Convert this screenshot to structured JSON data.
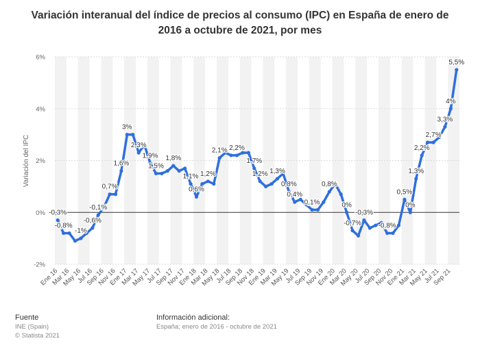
{
  "title": "Variación interanual del índice de precios al consumo (IPC) en España de enero de 2016 a octubre de 2021, por mes",
  "footer": {
    "source_heading": "Fuente",
    "source_lines": [
      "INE (Spain)",
      "© Statista 2021"
    ],
    "info_heading": "Información adicional:",
    "info_text": "España; enero de 2016 - octubre de 2021"
  },
  "colors": {
    "line": "#2f6fdc",
    "band": "#f2f2f2",
    "grid": "#d9d9d9",
    "zero": "#333333"
  },
  "chart_data": {
    "type": "line",
    "title": "Variación interanual del índice de precios al consumo (IPC) en España de enero de 2016 a octubre de 2021, por mes",
    "ylabel": "Variación del IPC",
    "xlabel": "",
    "ylim": [
      -2,
      6
    ],
    "y_ticks": [
      "-2%",
      "0%",
      "2%",
      "4%",
      "6%"
    ],
    "y_tick_values": [
      -2,
      0,
      2,
      4,
      6
    ],
    "grid": true,
    "x_tick_labels": [
      "Ene 16",
      "Mar 16",
      "May 16",
      "Jul 16",
      "Sep 16",
      "Nov 16",
      "Ene 17",
      "Mar 17",
      "May 17",
      "Jul 17",
      "Sep 17",
      "Nov 17",
      "Ene 18",
      "Mar 18",
      "May 18",
      "Jul 18",
      "Sep 18",
      "Nov 18",
      "Ene 19",
      "Mar 19",
      "May 19",
      "Jul 19",
      "Sep 19",
      "Nov 19",
      "Ene 20",
      "Mar 20",
      "May 20",
      "Jul 20",
      "Sep 20",
      "Nov 20",
      "Ene 21",
      "Mar 21",
      "May 21",
      "Jul 21",
      "Sep 21"
    ],
    "x": [
      "Ene 16",
      "Feb 16",
      "Mar 16",
      "Abr 16",
      "May 16",
      "Jun 16",
      "Jul 16",
      "Ago 16",
      "Sep 16",
      "Oct 16",
      "Nov 16",
      "Dic 16",
      "Ene 17",
      "Feb 17",
      "Mar 17",
      "Abr 17",
      "May 17",
      "Jun 17",
      "Jul 17",
      "Ago 17",
      "Sep 17",
      "Oct 17",
      "Nov 17",
      "Dic 17",
      "Ene 18",
      "Feb 18",
      "Mar 18",
      "Abr 18",
      "May 18",
      "Jun 18",
      "Jul 18",
      "Ago 18",
      "Sep 18",
      "Oct 18",
      "Nov 18",
      "Dic 18",
      "Ene 19",
      "Feb 19",
      "Mar 19",
      "Abr 19",
      "May 19",
      "Jun 19",
      "Jul 19",
      "Ago 19",
      "Sep 19",
      "Oct 19",
      "Nov 19",
      "Dic 19",
      "Ene 20",
      "Feb 20",
      "Mar 20",
      "Abr 20",
      "May 20",
      "Jun 20",
      "Jul 20",
      "Ago 20",
      "Sep 20",
      "Oct 20",
      "Nov 20",
      "Dic 20",
      "Ene 21",
      "Feb 21",
      "Mar 21",
      "Abr 21",
      "May 21",
      "Jun 21",
      "Jul 21",
      "Ago 21",
      "Sep 21",
      "Oct 21"
    ],
    "values": [
      -0.3,
      -0.8,
      -0.8,
      -1.1,
      -1.0,
      -0.8,
      -0.6,
      -0.1,
      0.2,
      0.7,
      0.7,
      1.6,
      3.0,
      3.0,
      2.3,
      2.6,
      1.9,
      1.5,
      1.5,
      1.6,
      1.8,
      1.6,
      1.7,
      1.1,
      0.6,
      1.1,
      1.2,
      1.1,
      2.1,
      2.3,
      2.2,
      2.2,
      2.3,
      2.3,
      1.7,
      1.2,
      1.0,
      1.1,
      1.3,
      1.5,
      0.8,
      0.4,
      0.5,
      0.3,
      0.1,
      0.1,
      0.4,
      0.8,
      1.1,
      0.7,
      0.0,
      -0.7,
      -0.9,
      -0.3,
      -0.6,
      -0.5,
      -0.4,
      -0.8,
      -0.8,
      -0.5,
      0.5,
      0.0,
      1.3,
      2.2,
      2.7,
      2.7,
      2.9,
      3.3,
      4.0,
      5.5
    ],
    "data_labels": [
      {
        "index": 0,
        "text": "-0,3%"
      },
      {
        "index": 1,
        "text": "-0,8%"
      },
      {
        "index": 4,
        "text": "-1%"
      },
      {
        "index": 6,
        "text": "-0,6%"
      },
      {
        "index": 7,
        "text": "-0,1%"
      },
      {
        "index": 9,
        "text": "0,7%"
      },
      {
        "index": 11,
        "text": "1,6%"
      },
      {
        "index": 12,
        "text": "3%"
      },
      {
        "index": 14,
        "text": "2,3%"
      },
      {
        "index": 16,
        "text": "1,9%"
      },
      {
        "index": 17,
        "text": "1,5%"
      },
      {
        "index": 20,
        "text": "1,8%"
      },
      {
        "index": 23,
        "text": "1,1%"
      },
      {
        "index": 24,
        "text": "0,6%"
      },
      {
        "index": 26,
        "text": "1,2%"
      },
      {
        "index": 28,
        "text": "2,1%"
      },
      {
        "index": 31,
        "text": "2,2%"
      },
      {
        "index": 34,
        "text": "1,7%"
      },
      {
        "index": 35,
        "text": "1,2%"
      },
      {
        "index": 38,
        "text": "1,3%"
      },
      {
        "index": 40,
        "text": "0,8%"
      },
      {
        "index": 41,
        "text": "0,4%"
      },
      {
        "index": 44,
        "text": "0,1%"
      },
      {
        "index": 47,
        "text": "0,8%"
      },
      {
        "index": 50,
        "text": "0%"
      },
      {
        "index": 51,
        "text": "-0,7%"
      },
      {
        "index": 53,
        "text": "-0,3%"
      },
      {
        "index": 57,
        "text": "-0,8%"
      },
      {
        "index": 60,
        "text": "0,5%"
      },
      {
        "index": 61,
        "text": "0%"
      },
      {
        "index": 62,
        "text": "1,3%"
      },
      {
        "index": 63,
        "text": "2,2%"
      },
      {
        "index": 65,
        "text": "2,7%"
      },
      {
        "index": 67,
        "text": "3,3%"
      },
      {
        "index": 68,
        "text": "4%"
      },
      {
        "index": 69,
        "text": "5,5%"
      }
    ]
  }
}
